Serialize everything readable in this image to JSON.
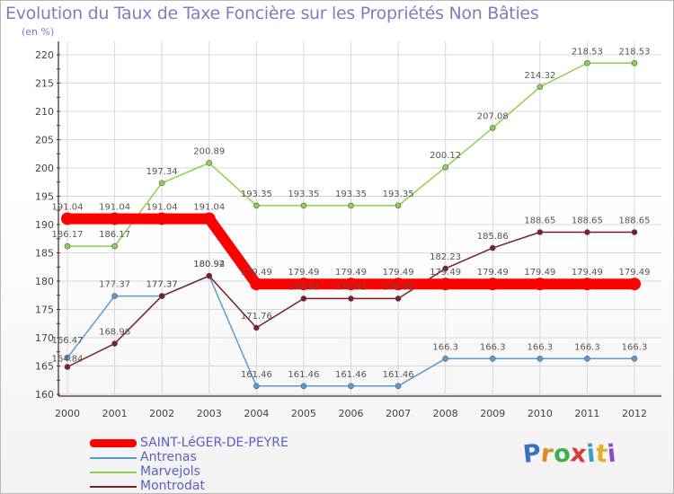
{
  "header": {
    "title": "Evolution du Taux de Taxe Foncière sur les Propriétés Non Bâties",
    "unit": "(en %)"
  },
  "logo": {
    "text": "Proxiti",
    "letters": [
      "P",
      "r",
      "o",
      "x",
      "i",
      "t",
      "i"
    ]
  },
  "colors": {
    "title": "#7b7fc0",
    "legend_text": "#5a5fc0",
    "grid": "#d8d8d8",
    "axis": "#000000",
    "axis_ticks": "#cc0000"
  },
  "chart_data": {
    "type": "line",
    "title": "Evolution du Taux de Taxe Foncière sur les Propriétés Non Bâties",
    "ylabel": "(en %)",
    "xlabel": "",
    "x": [
      "2000",
      "2001",
      "2002",
      "2003",
      "2004",
      "2005",
      "2006",
      "2007",
      "2008",
      "2009",
      "2010",
      "2011",
      "2012"
    ],
    "ylim": [
      160,
      220
    ],
    "yticks": [
      160,
      165,
      170,
      175,
      180,
      185,
      190,
      195,
      200,
      205,
      210,
      215,
      220
    ],
    "grid": true,
    "legend_position": "bottom-left",
    "series": [
      {
        "name": "SAINT-LéGER-DE-PEYRE",
        "color": "#ff0000",
        "emphasis": true,
        "values": [
          191.04,
          191.04,
          191.04,
          191.04,
          179.49,
          179.49,
          179.49,
          179.49,
          179.49,
          179.49,
          179.49,
          179.49,
          179.49
        ],
        "labels": [
          "191.04",
          "191.04",
          "191.04",
          "191.04",
          "179.49",
          "179.49",
          "179.49",
          "179.49",
          "179.49",
          "179.49",
          "179.49",
          "179.49",
          "179.49"
        ]
      },
      {
        "name": "Antrenas",
        "color": "#5b9bd5",
        "emphasis": false,
        "values": [
          166.47,
          177.37,
          177.37,
          180.94,
          161.46,
          161.46,
          161.46,
          161.46,
          166.3,
          166.3,
          166.3,
          166.3,
          166.3
        ],
        "labels": [
          "166.47",
          "177.37",
          "177.37",
          "180.94",
          "161.46",
          "161.46",
          "161.46",
          "161.46",
          "166.3",
          "166.3",
          "166.3",
          "166.3",
          "166.3"
        ]
      },
      {
        "name": "Marvejols",
        "color": "#8cd152",
        "emphasis": false,
        "values": [
          186.17,
          186.17,
          197.34,
          200.89,
          193.35,
          193.35,
          193.35,
          193.35,
          200.12,
          207.08,
          214.32,
          218.53,
          218.53
        ],
        "labels": [
          "186.17",
          "186.17",
          "197.34",
          "200.89",
          "193.35",
          "193.35",
          "193.35",
          "193.35",
          "200.12",
          "207.08",
          "214.32",
          "218.53",
          "218.53"
        ]
      },
      {
        "name": "Montrodat",
        "color": "#7a1f28",
        "emphasis": false,
        "values": [
          164.84,
          168.96,
          177.37,
          180.92,
          171.76,
          176.92,
          176.92,
          176.92,
          182.23,
          185.86,
          188.65,
          188.65,
          188.65
        ],
        "labels": [
          "164.84",
          "168.96",
          "177.37",
          "180.92",
          "171.76",
          "176.92",
          "176.92",
          "176.92",
          "182.23",
          "185.86",
          "188.65",
          "188.65",
          "188.65"
        ]
      }
    ]
  }
}
